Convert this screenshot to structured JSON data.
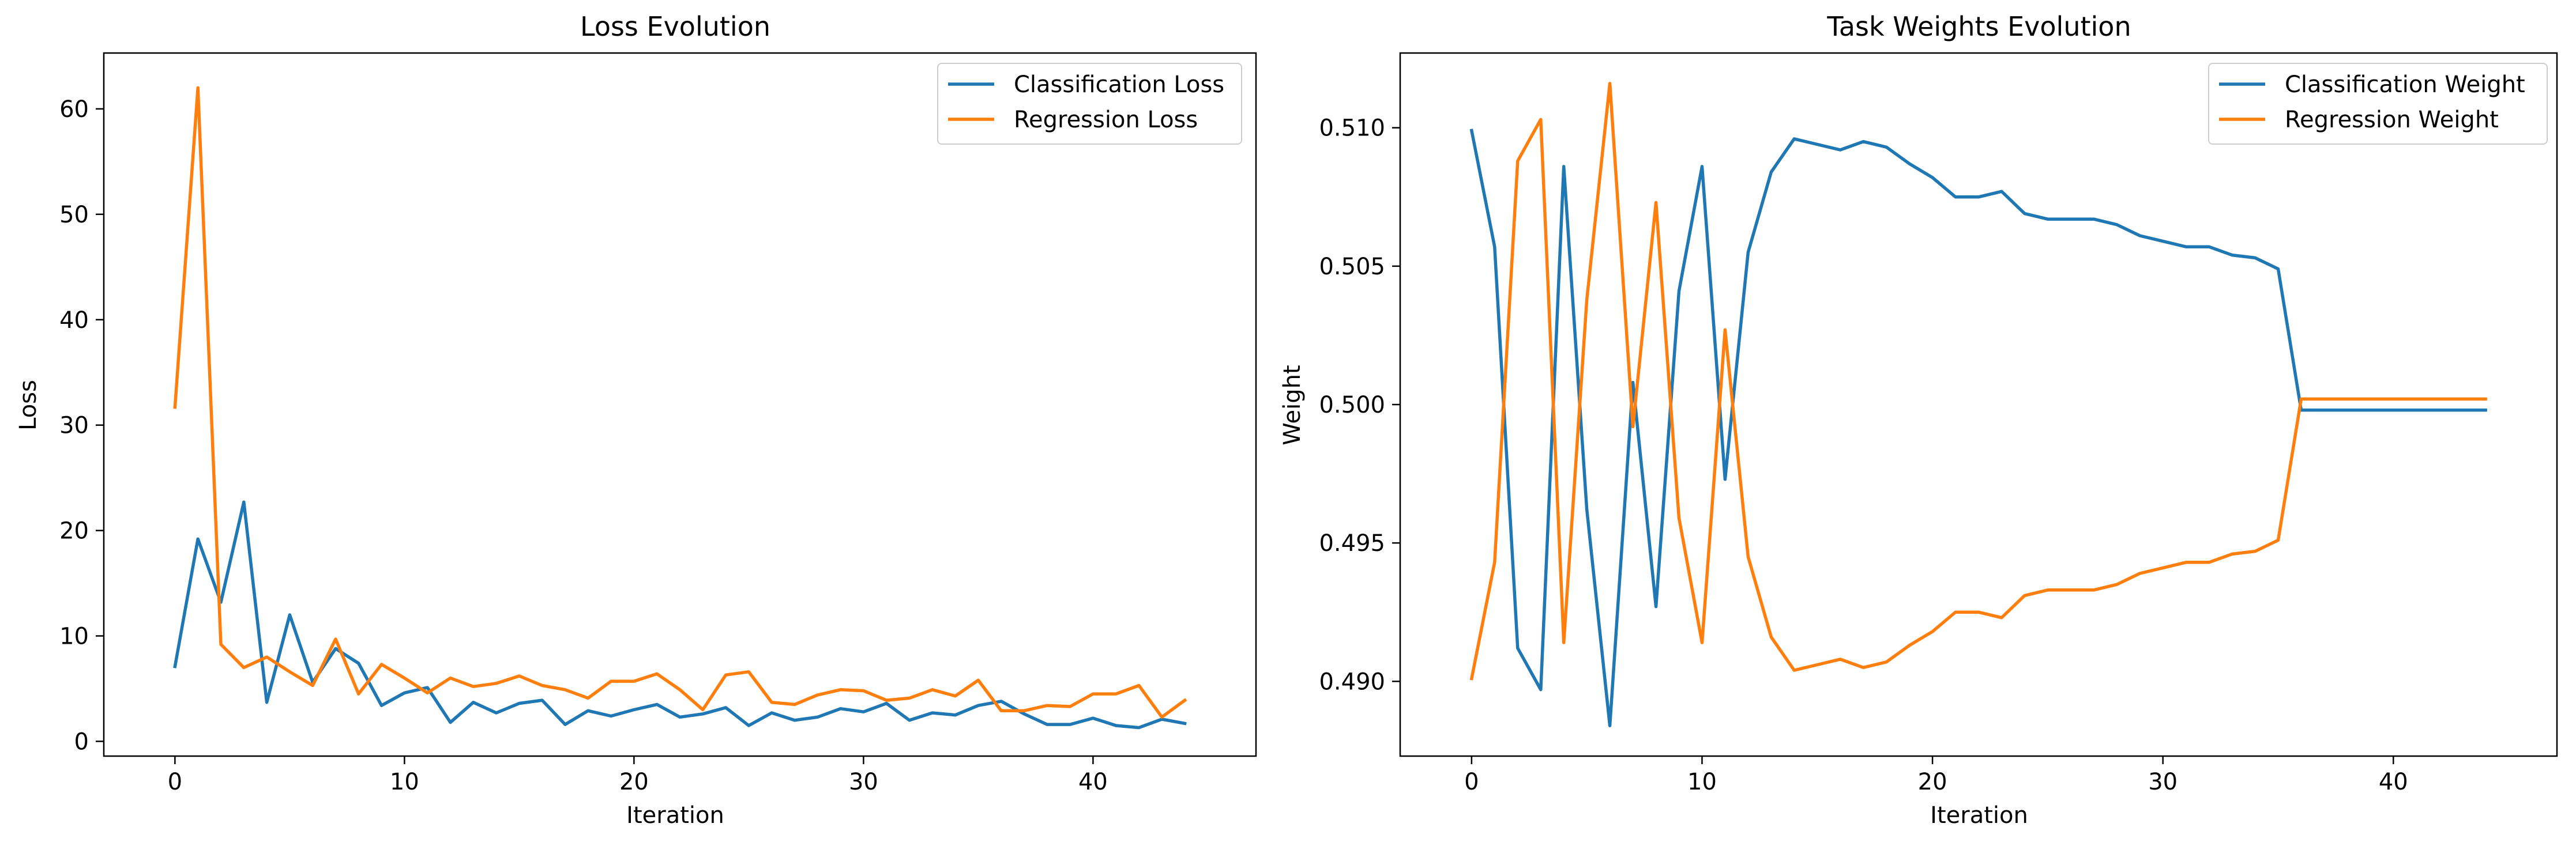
{
  "chart_data": [
    {
      "type": "line",
      "title": "Loss Evolution",
      "xlabel": "Iteration",
      "ylabel": "Loss",
      "xlim": [
        -3.1,
        47.1
      ],
      "ylim": [
        -1.4,
        65.3
      ],
      "xticks": [
        0,
        10,
        20,
        30,
        40
      ],
      "yticks": [
        0,
        10,
        20,
        30,
        40,
        50,
        60
      ],
      "tick_decimals": 0,
      "legend_position": "top-right",
      "grid": false,
      "x": [
        0,
        1,
        2,
        3,
        4,
        5,
        6,
        7,
        8,
        9,
        10,
        11,
        12,
        13,
        14,
        15,
        16,
        17,
        18,
        19,
        20,
        21,
        22,
        23,
        24,
        25,
        26,
        27,
        28,
        29,
        30,
        31,
        32,
        33,
        34,
        35,
        36,
        37,
        38,
        39,
        40,
        41,
        42,
        43,
        44
      ],
      "series": [
        {
          "name": "Classification Loss",
          "color": "#1f77b4",
          "values": [
            7.1,
            19.2,
            13.2,
            22.7,
            3.7,
            12.0,
            5.6,
            8.8,
            7.4,
            3.4,
            4.6,
            5.1,
            1.8,
            3.7,
            2.7,
            3.6,
            3.9,
            1.6,
            2.9,
            2.4,
            3.0,
            3.5,
            2.3,
            2.6,
            3.2,
            1.5,
            2.7,
            2.0,
            2.3,
            3.1,
            2.8,
            3.6,
            2.0,
            2.7,
            2.5,
            3.4,
            3.8,
            2.6,
            1.6,
            1.6,
            2.2,
            1.5,
            1.3,
            2.1,
            1.7
          ]
        },
        {
          "name": "Regression Loss",
          "color": "#ff7f0e",
          "values": [
            31.7,
            62.0,
            9.2,
            7.0,
            8.0,
            6.6,
            5.3,
            9.7,
            4.5,
            7.3,
            6.0,
            4.6,
            6.0,
            5.2,
            5.5,
            6.2,
            5.3,
            4.9,
            4.1,
            5.7,
            5.7,
            6.4,
            4.9,
            3.0,
            6.3,
            6.6,
            3.7,
            3.5,
            4.4,
            4.9,
            4.8,
            3.9,
            4.1,
            4.9,
            4.3,
            5.8,
            2.9,
            2.9,
            3.4,
            3.3,
            4.5,
            4.5,
            5.3,
            2.3,
            3.9
          ]
        }
      ]
    },
    {
      "type": "line",
      "title": "Task Weights Evolution",
      "xlabel": "Iteration",
      "ylabel": "Weight",
      "xlim": [
        -3.1,
        47.1
      ],
      "ylim": [
        0.4873,
        0.5127
      ],
      "xticks": [
        0,
        10,
        20,
        30,
        40
      ],
      "yticks": [
        0.49,
        0.495,
        0.5,
        0.505,
        0.51
      ],
      "tick_decimals": 3,
      "legend_position": "top-right",
      "grid": false,
      "x": [
        0,
        1,
        2,
        3,
        4,
        5,
        6,
        7,
        8,
        9,
        10,
        11,
        12,
        13,
        14,
        15,
        16,
        17,
        18,
        19,
        20,
        21,
        22,
        23,
        24,
        25,
        26,
        27,
        28,
        29,
        30,
        31,
        32,
        33,
        34,
        35,
        36,
        37,
        38,
        39,
        40,
        41,
        42,
        43,
        44
      ],
      "series": [
        {
          "name": "Classification Weight",
          "color": "#1f77b4",
          "values": [
            0.5099,
            0.5057,
            0.4912,
            0.4897,
            0.5086,
            0.4962,
            0.4884,
            0.5008,
            0.4927,
            0.5041,
            0.5086,
            0.4973,
            0.5055,
            0.5084,
            0.5096,
            0.5094,
            0.5092,
            0.5095,
            0.5093,
            0.5087,
            0.5082,
            0.5075,
            0.5075,
            0.5077,
            0.5069,
            0.5067,
            0.5067,
            0.5067,
            0.5065,
            0.5061,
            0.5059,
            0.5057,
            0.5057,
            0.5054,
            0.5053,
            0.5049,
            0.4998,
            0.4998,
            0.4998,
            0.4998,
            0.4998,
            0.4998,
            0.4998,
            0.4998,
            0.4998
          ]
        },
        {
          "name": "Regression Weight",
          "color": "#ff7f0e",
          "values": [
            0.4901,
            0.4943,
            0.5088,
            0.5103,
            0.4914,
            0.5038,
            0.5116,
            0.4992,
            0.5073,
            0.4959,
            0.4914,
            0.5027,
            0.4945,
            0.4916,
            0.4904,
            0.4906,
            0.4908,
            0.4905,
            0.4907,
            0.4913,
            0.4918,
            0.4925,
            0.4925,
            0.4923,
            0.4931,
            0.4933,
            0.4933,
            0.4933,
            0.4935,
            0.4939,
            0.4941,
            0.4943,
            0.4943,
            0.4946,
            0.4947,
            0.4951,
            0.5002,
            0.5002,
            0.5002,
            0.5002,
            0.5002,
            0.5002,
            0.5002,
            0.5002,
            0.5002
          ]
        }
      ]
    }
  ]
}
